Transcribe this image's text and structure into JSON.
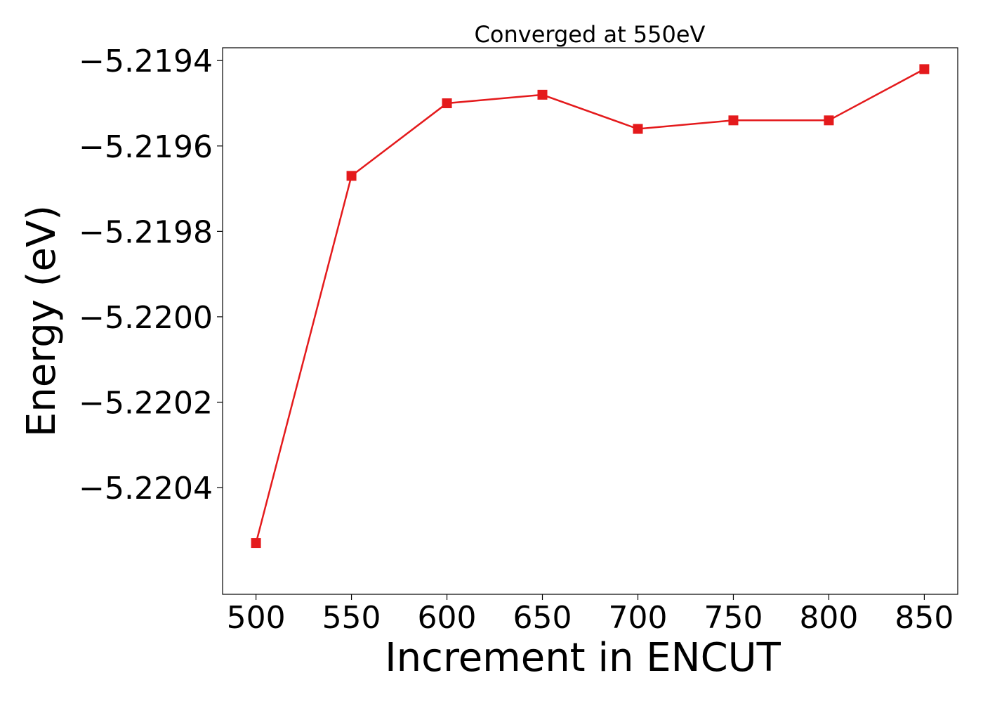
{
  "chart_data": {
    "type": "line",
    "title": "Converged at 550eV",
    "xlabel": "Increment in ENCUT",
    "ylabel": "Energy (eV)",
    "x": [
      500,
      550,
      600,
      650,
      700,
      750,
      800,
      850
    ],
    "series": [
      {
        "values": [
          -5.22053,
          -5.21967,
          -5.2195,
          -5.21948,
          -5.21956,
          -5.21954,
          -5.21954,
          -5.21942
        ],
        "color": "#e41a1c",
        "marker": "square"
      }
    ],
    "xticks": [
      "500",
      "550",
      "600",
      "650",
      "700",
      "750",
      "800",
      "850"
    ],
    "yticks": [
      "−5.2194",
      "−5.2196",
      "−5.2198",
      "−5.2200",
      "−5.2202",
      "−5.2204"
    ],
    "ytick_values": [
      -5.2194,
      -5.2196,
      -5.2198,
      -5.22,
      -5.2202,
      -5.2204
    ],
    "xlim": [
      482.5,
      867.5
    ],
    "ylim": [
      -5.22065,
      -5.21937
    ],
    "grid": false,
    "legend": "none"
  }
}
